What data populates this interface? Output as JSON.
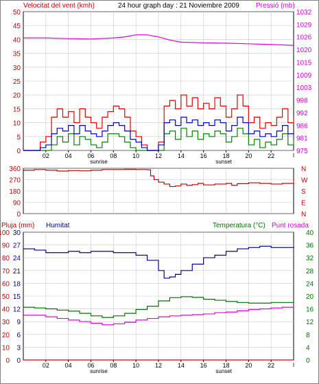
{
  "header": {
    "left_title": "Velocitat del vent (kmh)",
    "center_title": "24 hour graph day : 21 Noviembre 2009",
    "right_title": "Pressió (mb)"
  },
  "x_labels": [
    "02",
    "04",
    "06",
    "08",
    "10",
    "12",
    "14",
    "16",
    "18",
    "20",
    "22"
  ],
  "sunrise_label": "sunrise",
  "sunset_label": "sunset",
  "colors": {
    "frame": "#000000",
    "background": "#ffffff",
    "grid": "#c8c8c8",
    "wind_max": "#e00000",
    "wind_avg": "#0000c0",
    "wind_min": "#008000",
    "pressure": "#e000e0",
    "direction": "#c00000",
    "rain": "#e00000",
    "humidity": "#000090",
    "temperature": "#007000",
    "dewpoint": "#e000e0",
    "label_red": "#c00000",
    "label_blue": "#000090",
    "label_green": "#007000",
    "label_magenta": "#d000d0"
  },
  "chart_data": [
    {
      "type": "line",
      "name": "wind-pressure",
      "xlim": [
        0,
        24
      ],
      "wind_axis": {
        "ticks": [
          "50",
          "45",
          "40",
          "35",
          "30",
          "25",
          "20",
          "15",
          "10",
          "5",
          "0"
        ],
        "ylim": [
          0,
          50
        ]
      },
      "pressure_axis": {
        "ticks": [
          "1032",
          "1029",
          "1026",
          "1020",
          "1015",
          "1009",
          "1003",
          "998",
          "992",
          "986",
          "981",
          "975"
        ]
      },
      "series": [
        {
          "name": "",
          "key": "wind_max",
          "x": [
            0,
            1,
            1.5,
            2,
            2.5,
            3,
            3.5,
            4,
            4.5,
            5,
            5.5,
            6,
            6.5,
            7,
            7.5,
            8,
            8.5,
            9,
            9.5,
            10,
            10.5,
            11,
            11.5,
            12,
            12.5,
            13,
            13.5,
            14,
            14.5,
            15,
            15.5,
            16,
            16.5,
            17,
            17.5,
            18,
            18.5,
            19,
            19.5,
            20,
            20.5,
            21,
            21.5,
            22,
            22.5,
            23,
            23.5,
            24
          ],
          "y": [
            0,
            0,
            3,
            5,
            12,
            15,
            12,
            14,
            10,
            15,
            12,
            10,
            8,
            12,
            14,
            16,
            15,
            12,
            7,
            5,
            2,
            0,
            0,
            3,
            16,
            18,
            15,
            20,
            16,
            19,
            15,
            17,
            15,
            19,
            16,
            12,
            15,
            20,
            16,
            10,
            12,
            8,
            10,
            9,
            12,
            15,
            10,
            12
          ]
        },
        {
          "name": "",
          "key": "wind_avg",
          "x": [
            0,
            1,
            1.5,
            2,
            2.5,
            3,
            3.5,
            4,
            4.5,
            5,
            5.5,
            6,
            6.5,
            7,
            7.5,
            8,
            8.5,
            9,
            9.5,
            10,
            10.5,
            11,
            11.5,
            12,
            12.5,
            13,
            13.5,
            14,
            14.5,
            15,
            15.5,
            16,
            16.5,
            17,
            17.5,
            18,
            18.5,
            19,
            19.5,
            20,
            20.5,
            21,
            21.5,
            22,
            22.5,
            23,
            23.5,
            24
          ],
          "y": [
            0,
            0,
            1,
            2,
            6,
            8,
            7,
            9,
            6,
            9,
            7,
            6,
            5,
            7,
            9,
            10,
            9,
            7,
            4,
            3,
            1,
            0,
            0,
            2,
            10,
            11,
            9,
            12,
            10,
            11,
            9,
            10,
            9,
            11,
            10,
            7,
            9,
            12,
            10,
            6,
            7,
            5,
            6,
            5,
            7,
            9,
            6,
            7
          ]
        },
        {
          "name": "",
          "key": "wind_min",
          "x": [
            0,
            1,
            1.5,
            2,
            2.5,
            3,
            3.5,
            4,
            4.5,
            5,
            5.5,
            6,
            6.5,
            7,
            7.5,
            8,
            8.5,
            9,
            9.5,
            10,
            10.5,
            11,
            11.5,
            12,
            12.5,
            13,
            13.5,
            14,
            14.5,
            15,
            15.5,
            16,
            16.5,
            17,
            17.5,
            18,
            18.5,
            19,
            19.5,
            20,
            20.5,
            21,
            21.5,
            22,
            22.5,
            23,
            23.5,
            24
          ],
          "y": [
            0,
            0,
            0,
            0,
            2,
            5,
            3,
            6,
            2,
            5,
            4,
            2,
            1,
            3,
            6,
            6,
            5,
            3,
            1,
            0,
            0,
            0,
            0,
            0,
            6,
            7,
            4,
            8,
            5,
            7,
            4,
            6,
            5,
            7,
            6,
            3,
            5,
            8,
            6,
            2,
            4,
            1,
            3,
            2,
            4,
            6,
            2,
            4
          ]
        },
        {
          "name": "",
          "key": "pressure",
          "x": [
            0,
            2,
            4,
            6,
            8,
            9,
            10,
            11,
            12,
            13,
            14,
            16,
            18,
            20,
            22,
            24
          ],
          "y": [
            1025.5,
            1025.5,
            1025.2,
            1025.0,
            1025.5,
            1026.0,
            1026.5,
            1026.5,
            1026.0,
            1024.5,
            1023.5,
            1023.2,
            1023.0,
            1022.7,
            1022.4,
            1022.0
          ]
        }
      ]
    },
    {
      "type": "line",
      "name": "wind-direction",
      "xlim": [
        0,
        24
      ],
      "left_ticks": [
        "360",
        "270",
        "180",
        "90",
        "0"
      ],
      "right_ticks": [
        "N",
        "W",
        "S",
        "E",
        "N"
      ],
      "ylim": [
        0,
        360
      ],
      "series": [
        {
          "name": "",
          "key": "direction",
          "x": [
            0,
            1,
            2,
            3,
            4,
            5,
            6,
            7,
            8,
            9,
            10,
            11,
            11.3,
            11.6,
            12,
            12.5,
            13,
            13.5,
            14,
            14.5,
            15,
            15.5,
            16,
            17,
            18,
            18.5,
            19,
            20,
            21,
            22,
            23,
            24
          ],
          "y": [
            345,
            350,
            345,
            338,
            342,
            340,
            345,
            350,
            350,
            352,
            350,
            348,
            300,
            270,
            250,
            235,
            215,
            220,
            235,
            225,
            230,
            240,
            228,
            235,
            240,
            225,
            238,
            245,
            240,
            235,
            240,
            275
          ]
        }
      ]
    },
    {
      "type": "line",
      "name": "humidity-temperature",
      "xlim": [
        0,
        24
      ],
      "rain_axis": {
        "title": "Pluja (mm)",
        "ticks": [
          "100",
          "90",
          "80",
          "70",
          "60",
          "50",
          "40",
          "30",
          "20",
          "10",
          "0"
        ],
        "ylim": [
          0,
          100
        ]
      },
      "humidity_axis": {
        "title": "Humitat",
        "ticks": [
          "30",
          "27",
          "24",
          "21",
          "18",
          "15",
          "12",
          "9",
          "6",
          "3",
          "0"
        ]
      },
      "temperature_axis": {
        "title": "Temperatura (°C)",
        "ticks": [
          "40",
          "36",
          "32",
          "28",
          "24",
          "20",
          "16",
          "12",
          "8",
          "4",
          "0"
        ],
        "ylim": [
          0,
          40
        ]
      },
      "dewpoint_title": "Punt rosada",
      "series": [
        {
          "name": "",
          "key": "humidity",
          "x": [
            0,
            1,
            2,
            3,
            4,
            5,
            6,
            7,
            8,
            9,
            10,
            11,
            12,
            12.5,
            13,
            13.5,
            14,
            15,
            16,
            17,
            18,
            19,
            20,
            21,
            22,
            23,
            24
          ],
          "y": [
            87,
            86,
            84,
            84,
            85,
            84,
            85,
            85,
            84,
            84,
            82,
            78,
            70,
            64,
            65,
            67,
            70,
            75,
            80,
            82,
            85,
            87,
            88,
            89,
            88,
            88,
            89
          ]
        },
        {
          "name": "",
          "key": "rain",
          "x": [
            0,
            24
          ],
          "y": [
            0,
            0
          ]
        },
        {
          "name": "",
          "key": "temperature",
          "x": [
            0,
            1,
            2,
            3,
            4,
            5,
            6,
            7,
            8,
            9,
            10,
            11,
            12,
            13,
            14,
            15,
            16,
            17,
            18,
            19,
            20,
            21,
            22,
            23,
            24
          ],
          "y": [
            16.5,
            16.3,
            16,
            15.6,
            15.3,
            14.6,
            13.8,
            13.3,
            13.8,
            14.6,
            15.8,
            16.8,
            18.5,
            19.5,
            19.8,
            19.6,
            19,
            18.7,
            18.3,
            18,
            17.8,
            17.8,
            18,
            18,
            18.1
          ]
        },
        {
          "name": "",
          "key": "dewpoint",
          "x": [
            0,
            1,
            2,
            3,
            4,
            5,
            6,
            7,
            8,
            9,
            10,
            11,
            12,
            13,
            14,
            15,
            16,
            17,
            18,
            19,
            20,
            21,
            22,
            23,
            24
          ],
          "y": [
            14,
            14,
            13.5,
            13,
            12.5,
            12,
            11.5,
            11,
            11.3,
            11.8,
            12.5,
            13,
            13.5,
            13.8,
            14,
            14.2,
            14.4,
            14.8,
            15,
            15.4,
            15.8,
            16,
            16.3,
            16.5,
            16.8
          ]
        }
      ]
    }
  ]
}
